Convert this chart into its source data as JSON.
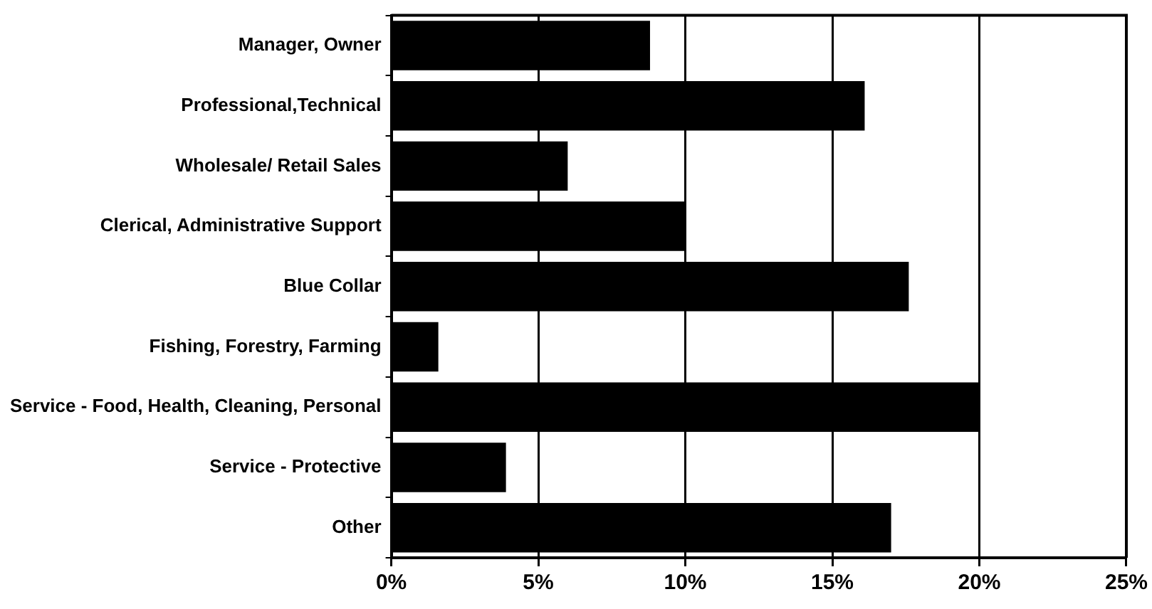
{
  "chart_data": {
    "type": "bar",
    "orientation": "horizontal",
    "categories": [
      "Manager, Owner",
      "Professional,Technical",
      "Wholesale/ Retail Sales",
      "Clerical, Administrative Support",
      "Blue Collar",
      "Fishing, Forestry, Farming",
      "Service - Food, Health, Cleaning, Personal",
      "Service - Protective",
      "Other"
    ],
    "values": [
      8.8,
      16.1,
      6.0,
      10.0,
      17.6,
      1.6,
      20.0,
      3.9,
      17.0
    ],
    "color": "#000000",
    "xlim": [
      0,
      25
    ],
    "xticks": [
      {
        "value": 0,
        "label": "0%"
      },
      {
        "value": 5,
        "label": "5%"
      },
      {
        "value": 10,
        "label": "10%"
      },
      {
        "value": 15,
        "label": "15%"
      },
      {
        "value": 20,
        "label": "20%"
      },
      {
        "value": 25,
        "label": "25%"
      }
    ],
    "grid": "x",
    "legend": false
  }
}
